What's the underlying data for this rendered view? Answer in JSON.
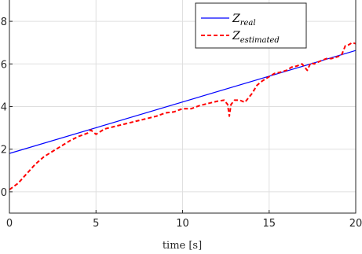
{
  "chart_data": {
    "type": "line",
    "title": "",
    "xlabel": "time  [s]",
    "ylabel": "",
    "xlim": [
      0,
      20
    ],
    "ylim": [
      -0.1,
      0.9
    ],
    "x_ticks": [
      0,
      5,
      10,
      15,
      20
    ],
    "x_tick_labels": [
      "0",
      "5",
      "10",
      "15",
      "20"
    ],
    "y_ticks": [
      0,
      0.2,
      0.4,
      0.6,
      0.8
    ],
    "y_tick_labels": [
      "0",
      "2",
      "4",
      "6",
      "8"
    ],
    "grid": true,
    "legend_position": "top-right",
    "series": [
      {
        "name": "Z_real",
        "legend_label": {
          "base": "Z",
          "sub": "real"
        },
        "color": "#0000ff",
        "line_style": "solid",
        "x": [
          0,
          20
        ],
        "y": [
          0.18,
          0.663
        ]
      },
      {
        "name": "Z_estimated",
        "legend_label": {
          "base": "Z",
          "sub": "estimated"
        },
        "color": "#ff0000",
        "line_style": "dashed",
        "x": [
          0,
          0.5,
          1,
          1.5,
          2,
          2.5,
          3,
          3.5,
          4,
          4.5,
          4.7,
          5,
          5.5,
          6,
          6.5,
          7,
          7.5,
          8,
          8.5,
          9,
          9.5,
          10,
          10.5,
          11,
          11.5,
          12,
          12.4,
          12.6,
          12.7,
          12.8,
          13,
          13.3,
          13.6,
          14,
          14.3,
          14.6,
          15,
          15.3,
          15.6,
          16,
          16.3,
          16.6,
          16.9,
          17.2,
          17.4,
          17.6,
          18,
          18.3,
          18.6,
          19,
          19.2,
          19.4,
          19.6,
          19.8,
          20
        ],
        "y": [
          0.01,
          0.04,
          0.085,
          0.13,
          0.165,
          0.19,
          0.215,
          0.24,
          0.26,
          0.275,
          0.29,
          0.27,
          0.295,
          0.305,
          0.315,
          0.325,
          0.335,
          0.345,
          0.355,
          0.37,
          0.375,
          0.39,
          0.39,
          0.405,
          0.415,
          0.425,
          0.43,
          0.41,
          0.355,
          0.41,
          0.43,
          0.43,
          0.42,
          0.46,
          0.5,
          0.52,
          0.54,
          0.555,
          0.56,
          0.57,
          0.585,
          0.59,
          0.6,
          0.57,
          0.605,
          0.6,
          0.615,
          0.625,
          0.625,
          0.635,
          0.645,
          0.685,
          0.69,
          0.7,
          0.695
        ]
      }
    ]
  }
}
